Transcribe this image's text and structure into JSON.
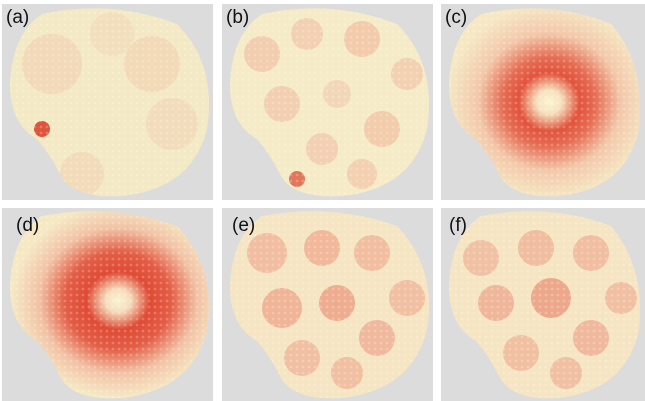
{
  "panels": [
    {
      "label": "(a)",
      "pattern": "faint"
    },
    {
      "label": "(b)",
      "pattern": "cells"
    },
    {
      "label": "(c)",
      "pattern": "ring"
    },
    {
      "label": "(d)",
      "pattern": "ring"
    },
    {
      "label": "(e)",
      "pattern": "cells"
    },
    {
      "label": "(f)",
      "pattern": "cells"
    }
  ],
  "colors": {
    "background": "#dcdcdc",
    "low": "#f6f2c6",
    "mid": "#f3b49c",
    "high": "#d93a2b"
  }
}
